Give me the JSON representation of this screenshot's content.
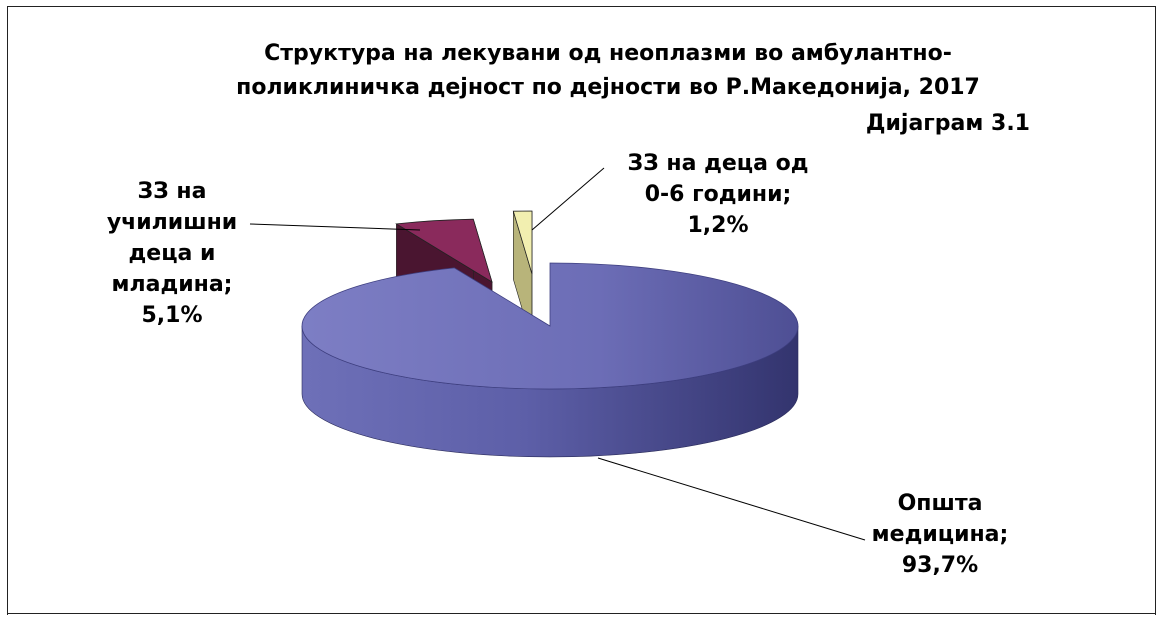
{
  "chart_data": {
    "type": "pie",
    "title_lines": [
      "Структура на лекувани од неоплазми во амбулантно-",
      "поликлиничка дејност по дејности во Р.Македонија, 2017"
    ],
    "subtitle": "Дијаграм 3.1",
    "slices": [
      {
        "label_lines": [
          "Општа",
          "медицина;",
          "93,7%"
        ],
        "category": "Општа медицина",
        "value": 93.7,
        "color": "#6a6bb4",
        "exploded": false
      },
      {
        "label_lines": [
          "ЗЗ на",
          "училишни",
          "деца и",
          "младина;",
          "5,1%"
        ],
        "category": "ЗЗ на училишни деца и младина",
        "value": 5.1,
        "color": "#8a2a5c",
        "exploded": true
      },
      {
        "label_lines": [
          "ЗЗ на деца од",
          "0-6 години;",
          "1,2%"
        ],
        "category": "ЗЗ на деца од 0-6 години",
        "value": 1.2,
        "color": "#f2efb0",
        "exploded": true
      }
    ],
    "legend": "none",
    "style": "3d-exploded"
  }
}
